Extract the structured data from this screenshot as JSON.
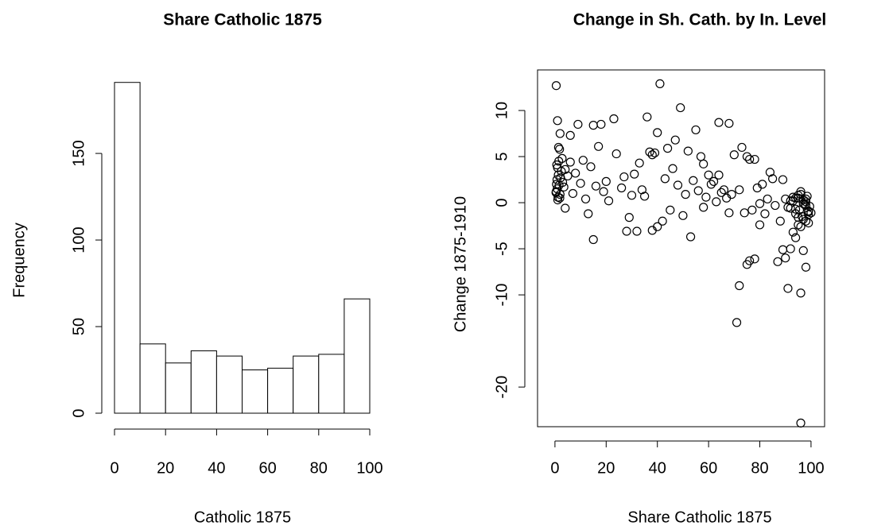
{
  "chart_data": [
    {
      "type": "histogram",
      "title": "Share Catholic 1875",
      "x_label": "Catholic 1875",
      "y_label": "Frequency",
      "bins": [
        0,
        10,
        20,
        30,
        40,
        50,
        60,
        70,
        80,
        90,
        100
      ],
      "values": [
        191,
        40,
        29,
        36,
        33,
        25,
        26,
        33,
        34,
        66
      ],
      "color": "#ffffff",
      "edge_color": "#000000",
      "xlim": [
        0,
        100
      ],
      "ylim": [
        0,
        195
      ],
      "xticks": [
        0,
        20,
        40,
        60,
        80,
        100
      ],
      "yticks": [
        0,
        50,
        100,
        150
      ]
    },
    {
      "type": "scatter",
      "title": "Change in Sh. Cath. by In. Level",
      "x_label": "Share Catholic 1875",
      "y_label": "Change 1875-1910",
      "color": "#000000",
      "x": [
        0.5,
        41,
        49,
        64,
        68,
        36,
        23,
        15,
        18,
        9,
        1,
        2,
        6,
        55,
        47,
        37,
        38,
        39,
        44,
        40,
        73,
        75,
        76,
        70,
        78,
        84,
        85,
        89,
        60,
        62,
        57,
        58,
        64,
        66,
        68,
        72,
        74,
        77,
        80,
        80,
        82,
        88,
        89,
        90,
        87,
        92,
        93,
        94,
        95,
        96,
        98,
        97,
        91,
        76,
        75,
        78,
        72,
        71,
        96,
        15,
        28,
        29,
        32,
        38,
        40,
        42,
        45,
        53,
        50,
        58,
        13,
        4,
        0.5,
        0.8,
        1,
        1.2,
        1.5,
        0.6,
        0.9,
        1.3,
        1.8,
        2,
        2.2,
        0.7,
        1.1,
        1.6,
        2.5,
        3,
        0.4,
        1.4,
        1.9,
        2.8,
        3.5,
        4,
        5,
        6,
        7,
        8,
        10,
        11,
        12,
        14,
        16,
        17,
        19,
        20,
        21,
        24,
        26,
        27,
        30,
        31,
        33,
        34,
        35,
        43,
        46,
        48,
        51,
        52,
        54,
        56,
        59,
        61,
        63,
        65,
        67,
        69,
        79,
        81,
        83,
        86,
        90,
        91,
        92,
        93,
        94,
        95,
        95.5,
        96,
        96.5,
        97,
        97.5,
        98,
        98.5,
        99,
        99.5,
        94,
        95,
        96,
        97,
        98,
        99,
        93,
        92,
        96,
        97,
        98,
        99,
        95,
        94,
        100,
        99,
        98
      ],
      "y": [
        12.7,
        12.9,
        10.3,
        8.7,
        8.6,
        9.3,
        9.1,
        8.4,
        8.5,
        8.5,
        8.9,
        7.5,
        7.3,
        7.9,
        6.8,
        5.5,
        5.2,
        5.4,
        5.9,
        7.6,
        6.0,
        5.0,
        4.7,
        5.2,
        4.7,
        3.3,
        2.6,
        2.5,
        3.0,
        2.3,
        5.0,
        4.2,
        3.0,
        1.4,
        -1.1,
        1.4,
        -1.1,
        -0.8,
        -2.4,
        -0.1,
        -1.2,
        -2.0,
        -5.1,
        -6.0,
        -6.4,
        -5.0,
        -3.2,
        -3.8,
        -2.4,
        -9.8,
        -7.0,
        -5.2,
        -9.3,
        -6.3,
        -6.7,
        -6.1,
        -9.0,
        -13.0,
        -23.9,
        -4.0,
        -3.1,
        -1.6,
        -3.1,
        -3.0,
        -2.6,
        -2.0,
        -0.8,
        -3.7,
        -1.4,
        -0.5,
        -1.2,
        -0.6,
        1.2,
        2.5,
        3.8,
        0.6,
        4.5,
        2.0,
        1.5,
        3.0,
        5.8,
        0.9,
        2.7,
        4.1,
        0.3,
        1.9,
        3.4,
        2.2,
        1.1,
        6.0,
        0.5,
        4.8,
        1.7,
        3.6,
        2.9,
        4.4,
        1.0,
        3.2,
        2.1,
        4.6,
        0.4,
        3.9,
        1.8,
        6.1,
        1.2,
        2.3,
        0.2,
        5.3,
        1.6,
        2.8,
        0.8,
        3.1,
        4.3,
        1.4,
        0.7,
        2.6,
        3.7,
        1.9,
        0.9,
        5.6,
        2.4,
        1.3,
        0.6,
        2.0,
        0.1,
        1.1,
        0.5,
        0.9,
        1.6,
        2.0,
        0.4,
        -0.3,
        0.4,
        -0.5,
        0.2,
        0.6,
        -1.2,
        0.5,
        -0.8,
        0.9,
        -1.5,
        0.3,
        -0.2,
        -2.0,
        0.7,
        -1.0,
        -0.4,
        -0.7,
        0.8,
        -2.6,
        -1.8,
        0.1,
        -1.3,
        0.2,
        -0.6,
        1.2,
        -0.1,
        0.4,
        -2.2,
        -1.6,
        0.5,
        -1.1,
        -0.9,
        -0.3
      ],
      "xlim": [
        -6.8,
        105.3
      ],
      "ylim": [
        -24.3,
        14.4
      ],
      "xticks": [
        0,
        20,
        40,
        60,
        80,
        100
      ],
      "yticks": [
        -20,
        -10,
        -5,
        0,
        5,
        10
      ]
    }
  ]
}
